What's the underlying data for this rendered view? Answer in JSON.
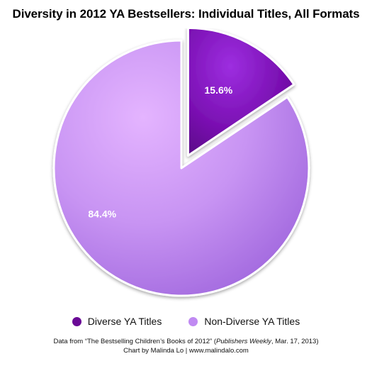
{
  "chart_data": {
    "type": "pie",
    "title": "Diversity in 2012 YA Bestsellers: Individual Titles, All Formats",
    "slices": [
      {
        "label": "Diverse YA Titles",
        "value": 15.6,
        "value_label": "15.6%",
        "color": "#7a0fb0",
        "exploded": true
      },
      {
        "label": "Non-Diverse YA Titles",
        "value": 84.4,
        "value_label": "84.4%",
        "color": "#c98ef5",
        "exploded": false
      }
    ],
    "legend_position": "bottom"
  },
  "legend": {
    "items": [
      {
        "label": "Diverse YA Titles",
        "color": "#6a0a96"
      },
      {
        "label": "Non-Diverse YA Titles",
        "color": "#c08af2"
      }
    ]
  },
  "source": {
    "line1_prefix": "Data from “The Bestselling Children’s Books of 2012” (",
    "line1_italic": "Publishers Weekly",
    "line1_suffix": ", Mar. 17, 2013)",
    "line2": "Chart by Malinda Lo | www.malindalo.com"
  }
}
